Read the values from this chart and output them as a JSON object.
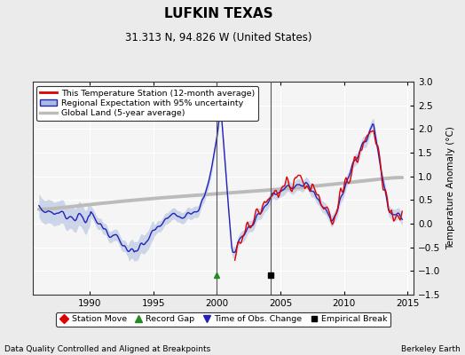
{
  "title": "LUFKIN TEXAS",
  "subtitle": "31.313 N, 94.826 W (United States)",
  "ylabel": "Temperature Anomaly (°C)",
  "xlabel_left": "Data Quality Controlled and Aligned at Breakpoints",
  "xlabel_right": "Berkeley Earth",
  "ylim": [
    -1.5,
    3.0
  ],
  "xlim": [
    1985.5,
    2015.5
  ],
  "yticks": [
    -1.5,
    -1.0,
    -0.5,
    0.0,
    0.5,
    1.0,
    1.5,
    2.0,
    2.5,
    3.0
  ],
  "xticks": [
    1990,
    1995,
    2000,
    2005,
    2010,
    2015
  ],
  "bg_color": "#ebebeb",
  "plot_bg": "#f5f5f5",
  "grid_color": "#ffffff",
  "station_color": "#dd0000",
  "regional_color": "#2222bb",
  "regional_fill_color": "#aabbdd",
  "global_color": "#bbbbbb",
  "vline1_x": 2000.0,
  "vline2_x": 2004.25,
  "marker_green_x": 2000.0,
  "marker_black_x": 2004.25,
  "marker_y": -1.08,
  "legend_labels": [
    "This Temperature Station (12-month average)",
    "Regional Expectation with 95% uncertainty",
    "Global Land (5-year average)"
  ],
  "legend2_labels": [
    "Station Move",
    "Record Gap",
    "Time of Obs. Change",
    "Empirical Break"
  ]
}
